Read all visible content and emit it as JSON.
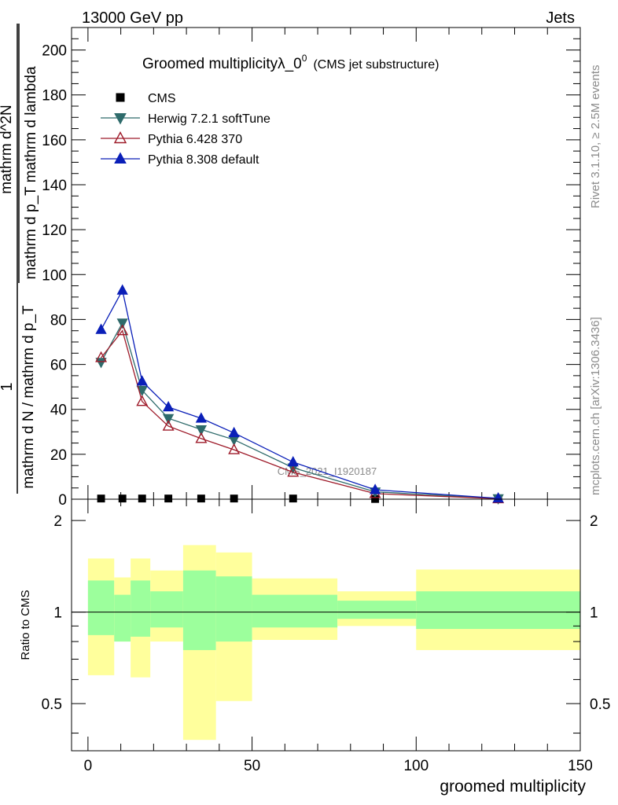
{
  "chart_data": {
    "type": "line",
    "header_left": "13000 GeV pp",
    "header_right": "Jets",
    "title": "Groomed multiplicityλ_0",
    "title_superscript": "0",
    "title_suffix": "(CMS jet substructure)",
    "ylabel_numerator": "1",
    "ylabel_denominator": "mathrm d N / mathrm d p_T",
    "ylabel_main": "mathrm d^2N / mathrm d p_T mathrm d lambda",
    "ylabel_main_num": "mathrm d^2N",
    "ylabel_main_den": "mathrm d p_T mathrm d lambda",
    "xlabel": "groomed multiplicity",
    "ratio_ylabel": "Ratio to CMS",
    "side_label_top": "Rivet 3.1.10, ≥ 2.5M events",
    "side_label_bottom": "mcplots.cern.ch [arXiv:1306.3436]",
    "watermark": "CMS_2021_I1920187",
    "xlim": [
      -5,
      150
    ],
    "ylim": [
      0,
      210
    ],
    "x_ticks": [
      "0",
      "50",
      "100",
      "150"
    ],
    "x_tick_values": [
      0,
      50,
      100,
      150
    ],
    "y_ticks": [
      "0",
      "20",
      "40",
      "60",
      "80",
      "100",
      "120",
      "140",
      "160",
      "180",
      "200"
    ],
    "y_tick_values": [
      0,
      20,
      40,
      60,
      80,
      100,
      120,
      140,
      160,
      180,
      200
    ],
    "ratio_ylim": [
      0.35,
      2.35
    ],
    "ratio_y_ticks": [
      "0.5",
      "1",
      "2"
    ],
    "ratio_y_tick_values": [
      0.5,
      1,
      2
    ],
    "series": [
      {
        "name": "CMS",
        "marker": "square",
        "color": "#000000",
        "x": [
          4,
          10.5,
          16.5,
          24.5,
          34.5,
          44.5,
          62.5,
          87.5,
          125
        ],
        "y": [
          0.3,
          0.3,
          0.3,
          0.3,
          0.3,
          0.3,
          0.3,
          0.1,
          0.05
        ]
      },
      {
        "name": "Herwig 7.2.1 softTune",
        "marker": "triangle-down",
        "color": "#2e6b6b",
        "x": [
          4,
          10.5,
          16.5,
          24.5,
          34.5,
          44.5,
          62.5,
          87.5,
          125
        ],
        "y": [
          61,
          78.5,
          48.5,
          36,
          31,
          26.5,
          14,
          3.3,
          0.3
        ]
      },
      {
        "name": "Pythia 6.428 370",
        "marker": "triangle-open",
        "color": "#9e1b2a",
        "x": [
          4,
          10.5,
          16.5,
          24.5,
          34.5,
          44.5,
          62.5,
          87.5,
          125
        ],
        "y": [
          63,
          75,
          43.5,
          32.5,
          27,
          22,
          12,
          2.5,
          0.2
        ]
      },
      {
        "name": "Pythia 8.308 default",
        "marker": "triangle-up",
        "color": "#0a1fb8",
        "x": [
          4,
          10.5,
          16.5,
          24.5,
          34.5,
          44.5,
          62.5,
          87.5,
          125
        ],
        "y": [
          75.5,
          93,
          52.5,
          41,
          36,
          29.5,
          16.5,
          4.2,
          0.4
        ]
      }
    ],
    "ratio_bands": [
      {
        "x0": 0,
        "x1": 8,
        "inner": [
          0.84,
          1.27
        ],
        "outer": [
          0.62,
          1.5
        ]
      },
      {
        "x0": 8,
        "x1": 13,
        "inner": [
          0.8,
          1.14
        ],
        "outer": [
          0.8,
          1.3
        ]
      },
      {
        "x0": 13,
        "x1": 19,
        "inner": [
          0.83,
          1.27
        ],
        "outer": [
          0.61,
          1.5
        ]
      },
      {
        "x0": 19,
        "x1": 29,
        "inner": [
          0.89,
          1.17
        ],
        "outer": [
          0.8,
          1.37
        ]
      },
      {
        "x0": 29,
        "x1": 39,
        "inner": [
          0.75,
          1.37
        ],
        "outer": [
          0.38,
          1.66
        ]
      },
      {
        "x0": 39,
        "x1": 50,
        "inner": [
          0.8,
          1.31
        ],
        "outer": [
          0.51,
          1.57
        ]
      },
      {
        "x0": 50,
        "x1": 76,
        "inner": [
          0.89,
          1.14
        ],
        "outer": [
          0.81,
          1.29
        ]
      },
      {
        "x0": 76,
        "x1": 100,
        "inner": [
          0.95,
          1.09
        ],
        "outer": [
          0.9,
          1.17
        ]
      },
      {
        "x0": 100,
        "x1": 150,
        "inner": [
          0.88,
          1.17
        ],
        "outer": [
          0.75,
          1.38
        ]
      }
    ],
    "colors": {
      "band_outer": "#ffff9c",
      "band_inner": "#9cff9c",
      "axis": "#000000",
      "watermark": "#8c8c8c",
      "side_label": "#8c8c8c"
    }
  }
}
